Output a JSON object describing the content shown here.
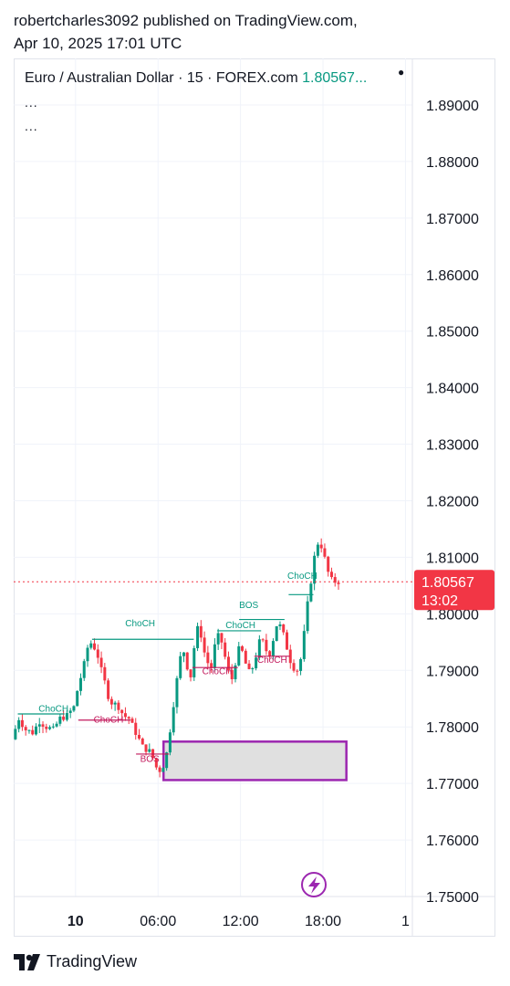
{
  "publish": {
    "line1": "robertcharles3092 published on TradingView.com,",
    "line2": "Apr 10, 2025 17:01 UTC"
  },
  "legend": {
    "title": "Euro / Australian Dollar · 15 · FOREX.com",
    "price": "1.80567...",
    "dots1": "...",
    "dots2": "..."
  },
  "footer": {
    "brand": "TradingView"
  },
  "colors": {
    "up": "#089981",
    "down": "#f23645",
    "choch_up": "#089981",
    "choch_down": "#c2185b",
    "zone_border": "#9c27b0",
    "zone_fill": "#e0e0e0"
  },
  "chart_data": {
    "type": "candlestick",
    "symbol": "EURAUD",
    "timeframe": "15",
    "ylim": [
      1.75,
      1.895
    ],
    "y_ticks": [
      "1.89000",
      "1.88000",
      "1.87000",
      "1.86000",
      "1.85000",
      "1.84000",
      "1.83000",
      "1.82000",
      "1.81000",
      "1.80000",
      "1.79000",
      "1.78000",
      "1.77000",
      "1.76000",
      "1.75000"
    ],
    "x_ticks": [
      {
        "label": "10",
        "hour": 0,
        "bold": true
      },
      {
        "label": "06:00",
        "hour": 6
      },
      {
        "label": "12:00",
        "hour": 12
      },
      {
        "label": "18:00",
        "hour": 18
      },
      {
        "label": "1",
        "hour": 24
      }
    ],
    "x_range_hours": [
      -4.5,
      24.5
    ],
    "last_price": {
      "value": 1.80567,
      "label": "1.80567",
      "countdown": "13:02"
    },
    "price_path": [
      [
        -4.5,
        1.7778
      ],
      [
        -4.0,
        1.7815
      ],
      [
        -3.5,
        1.7795
      ],
      [
        -3.0,
        1.779
      ],
      [
        -2.5,
        1.781
      ],
      [
        -2.0,
        1.78
      ],
      [
        -1.5,
        1.7795
      ],
      [
        -1.0,
        1.7815
      ],
      [
        -0.5,
        1.782
      ],
      [
        0.0,
        1.7835
      ],
      [
        0.3,
        1.787
      ],
      [
        0.7,
        1.7905
      ],
      [
        1.0,
        1.794
      ],
      [
        1.3,
        1.795
      ],
      [
        1.7,
        1.793
      ],
      [
        2.0,
        1.79
      ],
      [
        2.3,
        1.7875
      ],
      [
        2.6,
        1.7845
      ],
      [
        3.0,
        1.784
      ],
      [
        3.3,
        1.7835
      ],
      [
        3.6,
        1.782
      ],
      [
        4.0,
        1.7815
      ],
      [
        4.3,
        1.78
      ],
      [
        4.6,
        1.7785
      ],
      [
        5.0,
        1.7765
      ],
      [
        5.3,
        1.776
      ],
      [
        5.6,
        1.7755
      ],
      [
        5.9,
        1.7735
      ],
      [
        6.1,
        1.7722
      ],
      [
        6.4,
        1.7725
      ],
      [
        6.7,
        1.7745
      ],
      [
        7.0,
        1.7795
      ],
      [
        7.3,
        1.785
      ],
      [
        7.6,
        1.79
      ],
      [
        7.9,
        1.7945
      ],
      [
        8.2,
        1.791
      ],
      [
        8.5,
        1.789
      ],
      [
        8.8,
        1.795
      ],
      [
        9.1,
        1.7985
      ],
      [
        9.4,
        1.794
      ],
      [
        9.7,
        1.7915
      ],
      [
        10.0,
        1.7905
      ],
      [
        10.3,
        1.795
      ],
      [
        10.6,
        1.7965
      ],
      [
        10.9,
        1.7935
      ],
      [
        11.2,
        1.79
      ],
      [
        11.5,
        1.7885
      ],
      [
        11.8,
        1.792
      ],
      [
        12.1,
        1.7945
      ],
      [
        12.4,
        1.792
      ],
      [
        12.7,
        1.7895
      ],
      [
        13.0,
        1.7905
      ],
      [
        13.3,
        1.793
      ],
      [
        13.6,
        1.796
      ],
      [
        13.9,
        1.794
      ],
      [
        14.2,
        1.7925
      ],
      [
        14.5,
        1.7955
      ],
      [
        14.8,
        1.7985
      ],
      [
        15.1,
        1.7975
      ],
      [
        15.4,
        1.795
      ],
      [
        15.7,
        1.792
      ],
      [
        16.0,
        1.7905
      ],
      [
        16.3,
        1.79
      ],
      [
        16.6,
        1.793
      ],
      [
        16.9,
        1.8
      ],
      [
        17.2,
        1.805
      ],
      [
        17.5,
        1.81
      ],
      [
        17.8,
        1.813
      ],
      [
        18.1,
        1.8115
      ],
      [
        18.4,
        1.808
      ],
      [
        18.7,
        1.806
      ],
      [
        19.0,
        1.8057
      ]
    ],
    "annotations": [
      {
        "text": "ChoCH",
        "x": -1.6,
        "y": 1.7827,
        "color": "#089981",
        "line": [
          [
            -4.2,
            1.7823
          ],
          [
            -0.8,
            1.7823
          ]
        ]
      },
      {
        "text": "ChoCH",
        "x": 2.4,
        "y": 1.7808,
        "color": "#c2185b",
        "line": [
          [
            0.2,
            1.7812
          ],
          [
            4.0,
            1.7812
          ]
        ]
      },
      {
        "text": "ChoCH",
        "x": 4.7,
        "y": 1.7978,
        "color": "#089981",
        "line": [
          [
            1.2,
            1.7955
          ],
          [
            8.6,
            1.7955
          ]
        ]
      },
      {
        "text": "BOS",
        "x": 5.4,
        "y": 1.7738,
        "color": "#c2185b",
        "line": [
          [
            4.4,
            1.7752
          ],
          [
            6.8,
            1.7752
          ]
        ]
      },
      {
        "text": "ChoCH",
        "x": 10.3,
        "y": 1.7893,
        "color": "#c2185b",
        "line": [
          [
            8.5,
            1.7905
          ],
          [
            11.8,
            1.7905
          ]
        ]
      },
      {
        "text": "ChoCH",
        "x": 12.0,
        "y": 1.7975,
        "color": "#089981",
        "line": [
          [
            10.3,
            1.797
          ],
          [
            13.5,
            1.797
          ]
        ]
      },
      {
        "text": "ChoCH",
        "x": 14.3,
        "y": 1.7913,
        "color": "#c2185b",
        "line": [
          [
            13.0,
            1.7925
          ],
          [
            15.6,
            1.7925
          ]
        ]
      },
      {
        "text": "BOS",
        "x": 12.6,
        "y": 1.801,
        "color": "#089981",
        "line": [
          [
            11.9,
            1.799
          ],
          [
            15.2,
            1.799
          ]
        ]
      },
      {
        "text": "ChoCH",
        "x": 16.5,
        "y": 1.8062,
        "color": "#089981",
        "line": [
          [
            15.5,
            1.8034
          ],
          [
            17.3,
            1.8034
          ]
        ]
      }
    ],
    "demand_zone": {
      "x0": 6.4,
      "x1": 19.7,
      "y0": 1.7706,
      "y1": 1.7774
    },
    "grid": true
  }
}
